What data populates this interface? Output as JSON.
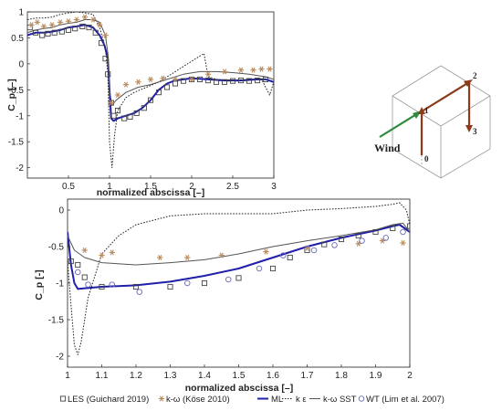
{
  "chart_data": [
    {
      "type": "line",
      "xlabel": "normalized abscissa [–]",
      "ylabel": "C_p [–]",
      "xlim": [
        0,
        3
      ],
      "ylim": [
        -2.2,
        1
      ],
      "xticks": [
        "0.5",
        "1",
        "1.5",
        "2",
        "2.5",
        "3"
      ],
      "yticks": [
        "1",
        "0.5",
        "0",
        "-0.5",
        "-1",
        "-1.5",
        "-2"
      ],
      "grid": false,
      "series": [
        {
          "name": "LES (Guichard 2019)",
          "marker": "square",
          "color": "#444444",
          "x": [
            0.03,
            0.1,
            0.18,
            0.25,
            0.33,
            0.42,
            0.5,
            0.58,
            0.67,
            0.75,
            0.83,
            0.9,
            0.95,
            0.98,
            1.02,
            1.05,
            1.1,
            1.18,
            1.25,
            1.33,
            1.42,
            1.5,
            1.6,
            1.7,
            1.8,
            1.9,
            2.0,
            2.1,
            2.2,
            2.3,
            2.4,
            2.5,
            2.6,
            2.7,
            2.8,
            2.9
          ],
          "y": [
            0.7,
            0.6,
            0.55,
            0.58,
            0.6,
            0.62,
            0.65,
            0.68,
            0.72,
            0.7,
            0.6,
            0.4,
            0.1,
            -0.2,
            -0.75,
            -1.0,
            -0.9,
            -1.05,
            -1.02,
            -0.95,
            -0.85,
            -0.7,
            -0.55,
            -0.45,
            -0.38,
            -0.33,
            -0.3,
            -0.3,
            -0.32,
            -0.35,
            -0.35,
            -0.33,
            -0.32,
            -0.33,
            -0.32,
            -0.3
          ]
        },
        {
          "name": "k-ω (Köse 2010)",
          "marker": "asterisk",
          "color": "#b88a5c",
          "x": [
            0.05,
            0.12,
            0.2,
            0.3,
            0.4,
            0.5,
            0.6,
            0.7,
            0.8,
            0.88,
            0.95,
            1.02,
            1.1,
            1.2,
            1.35,
            1.5,
            1.65,
            1.8,
            2.0,
            2.2,
            2.4,
            2.6,
            2.75,
            2.85,
            2.95
          ],
          "y": [
            0.75,
            0.8,
            0.72,
            0.75,
            0.8,
            0.82,
            0.85,
            0.9,
            0.85,
            0.75,
            0.55,
            -0.75,
            -0.6,
            -0.4,
            -0.35,
            -0.3,
            -0.28,
            -0.3,
            -0.3,
            -0.2,
            -0.15,
            -0.12,
            -0.12,
            -0.1,
            -0.1
          ]
        },
        {
          "name": "ML",
          "color": "#1f1fa8",
          "style": "solid",
          "width": 2,
          "x": [
            0.0,
            0.1,
            0.2,
            0.3,
            0.4,
            0.5,
            0.6,
            0.7,
            0.8,
            0.88,
            0.94,
            0.98,
            1.0,
            1.02,
            1.05,
            1.1,
            1.2,
            1.3,
            1.4,
            1.5,
            1.6,
            1.7,
            1.8,
            1.9,
            2.0,
            2.2,
            2.4,
            2.6,
            2.8,
            2.9,
            3.0
          ],
          "y": [
            0.55,
            0.6,
            0.6,
            0.62,
            0.65,
            0.7,
            0.72,
            0.75,
            0.7,
            0.55,
            0.35,
            0.1,
            -0.5,
            -1.05,
            -1.1,
            -1.05,
            -1.0,
            -0.95,
            -0.85,
            -0.7,
            -0.5,
            -0.38,
            -0.32,
            -0.3,
            -0.28,
            -0.3,
            -0.32,
            -0.32,
            -0.3,
            -0.3,
            -0.35
          ]
        },
        {
          "name": "k-ε",
          "color": "#222222",
          "style": "dotted",
          "width": 1,
          "x": [
            0.0,
            0.1,
            0.2,
            0.3,
            0.4,
            0.5,
            0.6,
            0.7,
            0.8,
            0.88,
            0.95,
            0.98,
            1.0,
            1.03,
            1.06,
            1.1,
            1.2,
            1.3,
            1.45,
            1.6,
            1.75,
            1.9,
            2.05,
            2.15,
            2.2,
            2.3,
            2.5,
            2.7,
            2.85,
            2.95,
            3.0
          ],
          "y": [
            0.85,
            0.88,
            0.88,
            0.9,
            0.95,
            0.98,
            1.0,
            0.98,
            0.95,
            0.7,
            0.3,
            -0.2,
            -1.5,
            -2.0,
            -1.4,
            -0.9,
            -0.65,
            -0.55,
            -0.45,
            -0.35,
            -0.2,
            -0.05,
            0.1,
            0.2,
            -0.25,
            -0.3,
            -0.32,
            -0.3,
            -0.3,
            -0.6,
            -0.35
          ]
        },
        {
          "name": "k-ω SST",
          "color": "#555555",
          "style": "solid",
          "width": 1,
          "x": [
            0.0,
            0.1,
            0.2,
            0.3,
            0.4,
            0.5,
            0.6,
            0.7,
            0.8,
            0.88,
            0.95,
            0.98,
            1.0,
            1.03,
            1.08,
            1.2,
            1.35,
            1.5,
            1.7,
            1.9,
            2.1,
            2.3,
            2.5,
            2.7,
            2.9,
            3.0
          ],
          "y": [
            0.6,
            0.65,
            0.68,
            0.7,
            0.75,
            0.78,
            0.8,
            0.85,
            0.85,
            0.8,
            0.55,
            0.2,
            -0.5,
            -0.8,
            -0.7,
            -0.55,
            -0.45,
            -0.4,
            -0.3,
            -0.2,
            -0.15,
            -0.15,
            -0.17,
            -0.2,
            -0.25,
            -0.3
          ]
        }
      ]
    },
    {
      "type": "line",
      "xlabel": "normalized abscissa [–]",
      "ylabel": "C_p [-]",
      "xlim": [
        1,
        2
      ],
      "ylim": [
        -2.15,
        0.15
      ],
      "xticks": [
        "1",
        "1.1",
        "1.2",
        "1.3",
        "1.4",
        "1.5",
        "1.6",
        "1.7",
        "1.8",
        "1.9",
        "2"
      ],
      "yticks": [
        "0",
        "-0.5",
        "-1",
        "-1.5",
        "-2"
      ],
      "grid": false,
      "series": [
        {
          "name": "LES (Guichard 2019)",
          "marker": "square",
          "color": "#444444",
          "x": [
            1.01,
            1.03,
            1.05,
            1.1,
            1.2,
            1.3,
            1.4,
            1.5,
            1.6,
            1.65,
            1.7,
            1.75,
            1.8,
            1.85,
            1.9,
            1.95,
            2.0
          ],
          "y": [
            -0.7,
            -0.75,
            -0.92,
            -1.05,
            -1.05,
            -1.05,
            -1.0,
            -0.93,
            -0.8,
            -0.65,
            -0.55,
            -0.47,
            -0.4,
            -0.35,
            -0.3,
            -0.25,
            -0.22
          ]
        },
        {
          "name": "k-ω (Köse 2010)",
          "marker": "asterisk",
          "color": "#b88a5c",
          "x": [
            1.05,
            1.1,
            1.13,
            1.27,
            1.35,
            1.45,
            1.58,
            1.7,
            1.85,
            1.92,
            1.98
          ],
          "y": [
            -0.55,
            -0.62,
            -0.58,
            -0.65,
            -0.65,
            -0.62,
            -0.57,
            -0.52,
            -0.46,
            -0.42,
            -0.45
          ]
        },
        {
          "name": "ML",
          "color": "#1f1fa8",
          "style": "solid",
          "width": 2,
          "x": [
            1.0,
            1.01,
            1.02,
            1.03,
            1.05,
            1.1,
            1.2,
            1.3,
            1.4,
            1.5,
            1.6,
            1.7,
            1.8,
            1.9,
            1.95,
            1.97,
            2.0
          ],
          "y": [
            -0.3,
            -0.75,
            -1.0,
            -1.08,
            -1.07,
            -1.05,
            -1.03,
            -0.98,
            -0.9,
            -0.8,
            -0.65,
            -0.5,
            -0.38,
            -0.28,
            -0.22,
            -0.2,
            -0.3
          ]
        },
        {
          "name": "k-ε",
          "color": "#222222",
          "style": "dotted",
          "width": 1,
          "x": [
            1.0,
            1.01,
            1.02,
            1.03,
            1.04,
            1.06,
            1.1,
            1.15,
            1.2,
            1.3,
            1.4,
            1.5,
            1.6,
            1.7,
            1.8,
            1.9,
            1.95,
            1.97,
            1.99,
            2.0
          ],
          "y": [
            -0.7,
            -1.3,
            -1.85,
            -1.98,
            -1.8,
            -1.2,
            -0.6,
            -0.35,
            -0.2,
            -0.08,
            -0.05,
            -0.05,
            -0.05,
            0.0,
            0.02,
            0.05,
            0.08,
            0.1,
            0.0,
            -0.2
          ]
        },
        {
          "name": "k-ω SST",
          "color": "#555555",
          "style": "solid",
          "width": 1,
          "x": [
            1.0,
            1.02,
            1.05,
            1.1,
            1.2,
            1.3,
            1.4,
            1.5,
            1.6,
            1.7,
            1.8,
            1.9,
            1.95,
            1.98,
            2.0
          ],
          "y": [
            -0.35,
            -0.55,
            -0.65,
            -0.72,
            -0.75,
            -0.72,
            -0.68,
            -0.6,
            -0.5,
            -0.42,
            -0.35,
            -0.27,
            -0.2,
            -0.18,
            -0.3
          ]
        },
        {
          "name": "WT (Lim et al. 2007)",
          "marker": "circle",
          "color": "#6a6ab8",
          "x": [
            1.03,
            1.06,
            1.13,
            1.21,
            1.35,
            1.47,
            1.56,
            1.63,
            1.72,
            1.78,
            1.86,
            1.93,
            1.98
          ],
          "y": [
            -0.85,
            -1.02,
            -1.02,
            -1.12,
            -1.0,
            -0.95,
            -0.8,
            -0.62,
            -0.55,
            -0.48,
            -0.42,
            -0.38,
            -0.3
          ]
        }
      ]
    }
  ],
  "legend": {
    "items": [
      {
        "marker": "square",
        "label": "LES (Guichard 2019)",
        "color": "#444444"
      },
      {
        "marker": "asterisk",
        "label": "k-ω (Köse 2010)",
        "color": "#b88a5c"
      },
      {
        "marker": "line-blue",
        "label": "ML",
        "color": "#1f1fa8"
      },
      {
        "marker": "line-dotted",
        "label": "k ε",
        "color": "#222222"
      },
      {
        "marker": "line-solid",
        "label": "k-ω SST",
        "color": "#555555"
      },
      {
        "marker": "circle",
        "label": "WT (Lim et al. 2007)",
        "color": "#6a6ab8"
      }
    ]
  },
  "inset": {
    "wind_label": "Wind",
    "nodes": [
      "0",
      "1",
      "2",
      "3"
    ],
    "path_color": "#8b3a1a",
    "arrow_color": "#2e8b3e"
  }
}
